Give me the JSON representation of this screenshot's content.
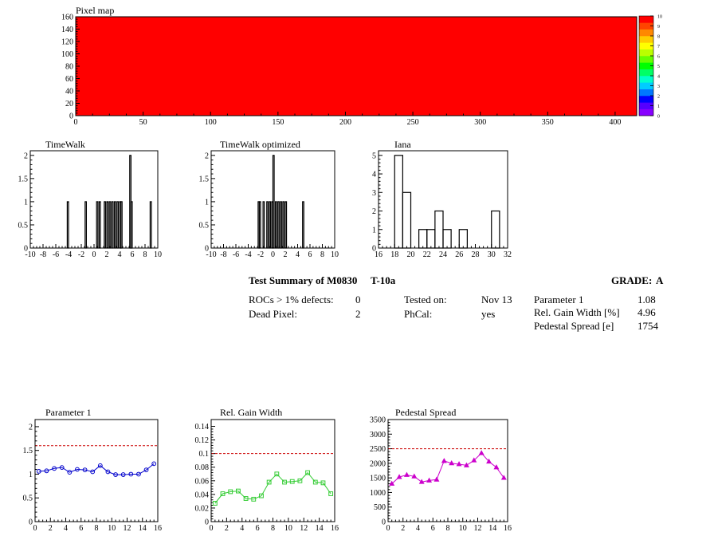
{
  "summary": {
    "title": "Test Summary of M0830",
    "temp": "T-10a",
    "grade_label": "GRADE:",
    "grade": "A",
    "rocs_label": "ROCs > 1% defects:",
    "rocs_value": "0",
    "dead_label": "Dead Pixel:",
    "dead_value": "2",
    "tested_label": "Tested on:",
    "tested_value": "Nov 13",
    "phcal_label": "PhCal:",
    "phcal_value": "yes",
    "p1_label": "Parameter 1",
    "p1_value": "1.08",
    "gain_label": "Rel. Gain Width [%]",
    "gain_value": "4.96",
    "ped_label": "Pedestal Spread [e]",
    "ped_value": "1754"
  },
  "colors": {
    "pixelmap_fill": "#ff0000",
    "param1_series": "#0000cc",
    "gain_series": "#33cc33",
    "pedestal_series": "#cc00cc",
    "limit_line": "#cc0000"
  },
  "chart_data": [
    {
      "id": "pixelmap",
      "type": "heatmap",
      "title": "Pixel map",
      "xlim": [
        0,
        416
      ],
      "ylim": [
        0,
        160
      ],
      "xticks": [
        0,
        50,
        100,
        150,
        200,
        250,
        300,
        350,
        400
      ],
      "yticks": [
        0,
        20,
        40,
        60,
        80,
        100,
        120,
        140,
        160
      ],
      "value": 10,
      "colorbar": {
        "range": [
          0,
          10
        ],
        "ticks": [
          "0",
          "1",
          "2",
          "3",
          "4",
          "5",
          "6",
          "7",
          "8",
          "9",
          "10"
        ],
        "colors": [
          "#8800ff",
          "#5500ff",
          "#0000ff",
          "#0077ff",
          "#00ccff",
          "#00ffcc",
          "#00ff66",
          "#00ff00",
          "#66ff00",
          "#bbff00",
          "#ffff00",
          "#ffcc00",
          "#ff8800",
          "#ff4400",
          "#ff0000"
        ]
      }
    },
    {
      "id": "timewalk",
      "type": "bar",
      "title": "TimeWalk",
      "xlim": [
        -10,
        10
      ],
      "ylim": [
        0,
        2.1
      ],
      "xticks": [
        "-10",
        "-8",
        "-6",
        "-4",
        "-2",
        "0",
        "2",
        "4",
        "6",
        "8",
        "10"
      ],
      "yticks": [
        "0",
        "0.5",
        "1",
        "1.5",
        "2"
      ],
      "bin_width": 0.2,
      "x": [
        -4.2,
        -1.4,
        0.4,
        0.8,
        1.6,
        2.0,
        2.4,
        2.8,
        3.2,
        3.6,
        4.0,
        4.2,
        5.6,
        5.8,
        8.8
      ],
      "values": [
        1,
        1,
        1,
        1,
        1,
        1,
        1,
        1,
        1,
        1,
        1,
        1,
        2,
        1,
        1
      ]
    },
    {
      "id": "timewalk_opt",
      "type": "bar",
      "title": "TimeWalk optimized",
      "xlim": [
        -10,
        10
      ],
      "ylim": [
        0,
        2.1
      ],
      "xticks": [
        "-10",
        "-8",
        "-6",
        "-4",
        "-2",
        "0",
        "2",
        "4",
        "6",
        "8",
        "10"
      ],
      "yticks": [
        "0",
        "0.5",
        "1",
        "1.5",
        "2"
      ],
      "bin_width": 0.2,
      "x": [
        -2.4,
        -2.2,
        -1.6,
        -1.0,
        -0.6,
        -0.2,
        0.0,
        0.4,
        0.8,
        1.2,
        1.6,
        2.0,
        4.8
      ],
      "values": [
        1,
        1,
        1,
        1,
        1,
        1,
        2,
        1,
        1,
        1,
        1,
        1,
        1
      ]
    },
    {
      "id": "iana",
      "type": "bar",
      "title": "Iana",
      "xlim": [
        16,
        32
      ],
      "ylim": [
        0,
        5.25
      ],
      "xticks": [
        "16",
        "18",
        "20",
        "22",
        "24",
        "26",
        "28",
        "30",
        "32"
      ],
      "yticks": [
        "0",
        "1",
        "2",
        "3",
        "4",
        "5"
      ],
      "bin_width": 1,
      "x": [
        18,
        19,
        20,
        21,
        22,
        23,
        24,
        25,
        26,
        27,
        28,
        29,
        30,
        31
      ],
      "values": [
        5,
        3,
        0,
        1,
        1,
        2,
        1,
        0,
        1,
        0,
        0,
        0,
        2,
        0
      ]
    },
    {
      "id": "param1",
      "type": "line",
      "title": "Parameter 1",
      "marker": "circle",
      "xlim": [
        0,
        16
      ],
      "ylim": [
        0,
        2.15
      ],
      "xticks": [
        "0",
        "2",
        "4",
        "6",
        "8",
        "10",
        "12",
        "14",
        "16"
      ],
      "yticks": [
        "0",
        "0.5",
        "1",
        "1.5",
        "2"
      ],
      "limit": 1.6,
      "x": [
        0.5,
        1.5,
        2.5,
        3.5,
        4.5,
        5.5,
        6.5,
        7.5,
        8.5,
        9.5,
        10.5,
        11.5,
        12.5,
        13.5,
        14.5,
        15.5
      ],
      "values": [
        1.06,
        1.07,
        1.12,
        1.14,
        1.04,
        1.1,
        1.09,
        1.05,
        1.18,
        1.05,
        0.99,
        0.99,
        1.0,
        1.0,
        1.09,
        1.22
      ]
    },
    {
      "id": "gainwidth",
      "type": "line",
      "title": "Rel. Gain Width",
      "marker": "square",
      "xlim": [
        0,
        16
      ],
      "ylim": [
        0,
        0.15
      ],
      "xticks": [
        "0",
        "2",
        "4",
        "6",
        "8",
        "10",
        "12",
        "14",
        "16"
      ],
      "yticks": [
        "0",
        "0.02",
        "0.04",
        "0.06",
        "0.08",
        "0.1",
        "0.12",
        "0.14"
      ],
      "limit": 0.1,
      "x": [
        0.5,
        1.5,
        2.5,
        3.5,
        4.5,
        5.5,
        6.5,
        7.5,
        8.5,
        9.5,
        10.5,
        11.5,
        12.5,
        13.5,
        14.5,
        15.5
      ],
      "values": [
        0.027,
        0.041,
        0.044,
        0.045,
        0.034,
        0.033,
        0.038,
        0.058,
        0.07,
        0.058,
        0.059,
        0.06,
        0.072,
        0.058,
        0.057,
        0.041
      ]
    },
    {
      "id": "pedestal",
      "type": "line",
      "title": "Pedestal Spread",
      "marker": "triangle",
      "xlim": [
        0,
        16
      ],
      "ylim": [
        0,
        3500
      ],
      "xticks": [
        "0",
        "2",
        "4",
        "6",
        "8",
        "10",
        "12",
        "14",
        "16"
      ],
      "yticks": [
        "0",
        "500",
        "1000",
        "1500",
        "2000",
        "2500",
        "3000",
        "3500"
      ],
      "limit": 2500,
      "x": [
        0.5,
        1.5,
        2.5,
        3.5,
        4.5,
        5.5,
        6.5,
        7.5,
        8.5,
        9.5,
        10.5,
        11.5,
        12.5,
        13.5,
        14.5,
        15.5
      ],
      "values": [
        1300,
        1530,
        1600,
        1550,
        1360,
        1410,
        1440,
        2080,
        2000,
        1970,
        1930,
        2100,
        2350,
        2060,
        1860,
        1500
      ]
    }
  ]
}
